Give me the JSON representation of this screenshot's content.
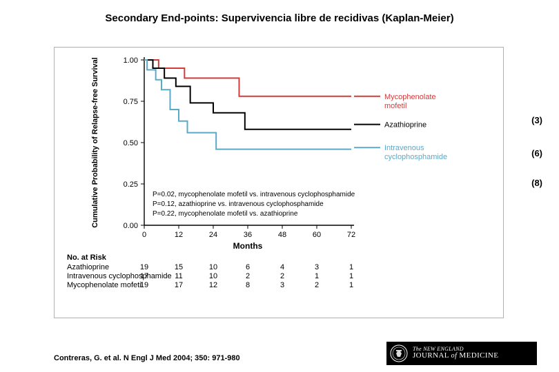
{
  "title": "Secondary End-points: Supervivencia libre de recidivas (Kaplan-Meier)",
  "citation": "Contreras, G. et al. N Engl J Med 2004; 350: 971-980",
  "nejm": {
    "line1": "The NEW ENGLAND",
    "line2_a": "JOURNAL",
    "line2_b": "of",
    "line2_c": "MEDICINE"
  },
  "side_counts": {
    "mmf": "(3)",
    "aza": "(6)",
    "ivc": "(8)"
  },
  "chart": {
    "type": "kaplan-meier-step",
    "background_color": "#ffffff",
    "axis_color": "#000000",
    "axis_line_width": 1.4,
    "tick_font_size": 11,
    "yaxis": {
      "label": "Cumulative Probability of Relapse-free Survival",
      "label_font_size": 11,
      "label_font_weight": "bold",
      "min": 0.0,
      "max": 1.0,
      "ticks": [
        0.0,
        0.25,
        0.5,
        0.75,
        1.0
      ],
      "tick_labels": [
        "0.00",
        "0.25",
        "0.50",
        "0.75",
        "1.00"
      ]
    },
    "xaxis": {
      "label": "Months",
      "label_font_size": 12,
      "label_font_weight": "bold",
      "min": 0,
      "max": 72,
      "ticks": [
        0,
        12,
        24,
        36,
        48,
        60,
        72
      ]
    },
    "series": [
      {
        "name": "Mycophenolate mofetil",
        "color": "#d13b3b",
        "line_width": 2.0,
        "step_points": [
          [
            0,
            1.0
          ],
          [
            5,
            1.0
          ],
          [
            5,
            0.95
          ],
          [
            14,
            0.95
          ],
          [
            14,
            0.89
          ],
          [
            33,
            0.89
          ],
          [
            33,
            0.78
          ],
          [
            72,
            0.78
          ]
        ]
      },
      {
        "name": "Azathioprine",
        "color": "#000000",
        "line_width": 2.0,
        "step_points": [
          [
            0,
            1.0
          ],
          [
            3,
            1.0
          ],
          [
            3,
            0.95
          ],
          [
            7,
            0.95
          ],
          [
            7,
            0.89
          ],
          [
            11,
            0.89
          ],
          [
            11,
            0.84
          ],
          [
            16,
            0.84
          ],
          [
            16,
            0.74
          ],
          [
            24,
            0.74
          ],
          [
            24,
            0.68
          ],
          [
            35,
            0.68
          ],
          [
            35,
            0.58
          ],
          [
            72,
            0.58
          ]
        ]
      },
      {
        "name": "Intravenous cyclophosphamide",
        "color": "#5aa9c9",
        "line_width": 2.0,
        "step_points": [
          [
            0,
            1.0
          ],
          [
            1,
            1.0
          ],
          [
            1,
            0.94
          ],
          [
            4,
            0.94
          ],
          [
            4,
            0.88
          ],
          [
            6,
            0.88
          ],
          [
            6,
            0.82
          ],
          [
            9,
            0.82
          ],
          [
            9,
            0.7
          ],
          [
            12,
            0.7
          ],
          [
            12,
            0.63
          ],
          [
            15,
            0.63
          ],
          [
            15,
            0.56
          ],
          [
            25,
            0.56
          ],
          [
            25,
            0.46
          ],
          [
            72,
            0.46
          ]
        ]
      }
    ],
    "legend": {
      "items": [
        {
          "label_lines": [
            "Mycophenolate",
            "mofetil"
          ],
          "color": "#d13b3b",
          "y": 0.78
        },
        {
          "label_lines": [
            "Azathioprine"
          ],
          "color": "#000000",
          "y": 0.61
        },
        {
          "label_lines": [
            "Intravenous",
            "cyclophosphamide"
          ],
          "color": "#5aa9c9",
          "y": 0.47
        }
      ],
      "font_size": 11
    },
    "pvalues": {
      "font_size": 10,
      "lines": [
        "P=0.02, mycophenolate mofetil vs. intravenous cyclophosphamide",
        "P=0.12, azathioprine vs. intravenous cyclophosphamide",
        "P=0.22, mycophenolate mofetil vs. azathioprine"
      ]
    },
    "risk_table": {
      "header": "No. at Risk",
      "header_font_size": 11,
      "row_font_size": 11,
      "rows": [
        {
          "label": "Azathioprine",
          "values": [
            19,
            15,
            10,
            6,
            4,
            3,
            1
          ]
        },
        {
          "label": "Intravenous cyclophosphamide",
          "values": [
            17,
            11,
            10,
            2,
            2,
            1,
            1
          ]
        },
        {
          "label": "Mycophenolate mofetil",
          "values": [
            19,
            17,
            12,
            8,
            3,
            2,
            1
          ]
        }
      ]
    }
  }
}
